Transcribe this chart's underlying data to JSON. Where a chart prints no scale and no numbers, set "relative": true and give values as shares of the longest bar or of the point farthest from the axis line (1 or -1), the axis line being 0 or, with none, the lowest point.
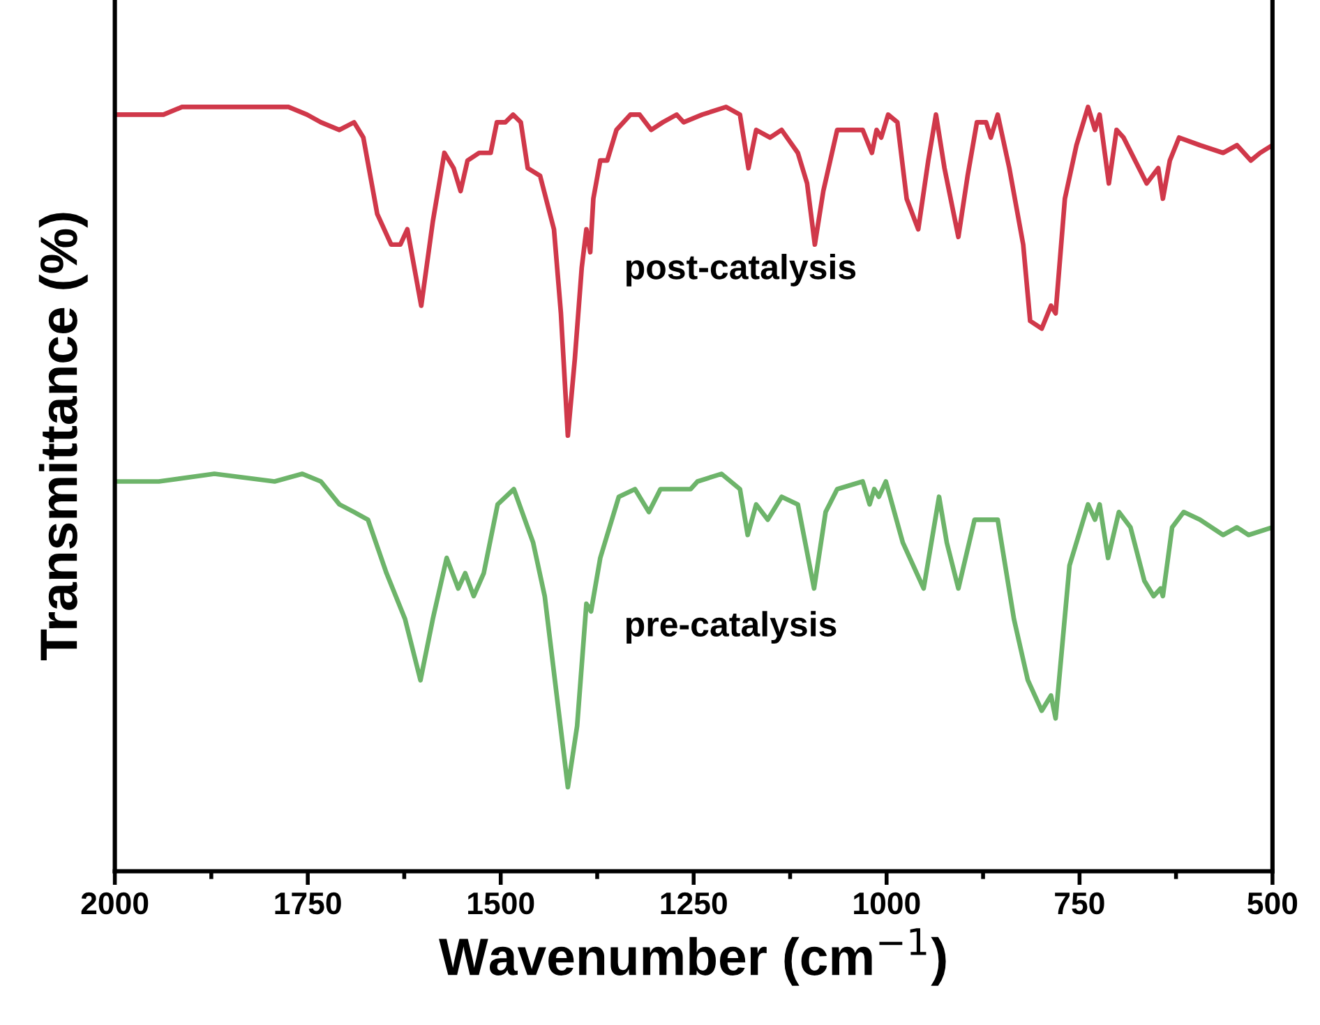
{
  "chart_data": {
    "type": "line",
    "relative": true,
    "xlabel": "Wavenumber (cm$^{−1}$)",
    "ylabel": "Transmittance (%)",
    "xlim": [
      2000,
      500
    ],
    "xticks": [
      2000,
      {
        "value": 1875,
        "label": null
      },
      1750,
      {
        "value": 1625,
        "label": null
      },
      1500,
      {
        "value": 1375,
        "label": null
      },
      1250,
      {
        "value": 1125,
        "label": null
      },
      1000,
      {
        "value": 875,
        "label": null
      },
      750,
      {
        "value": 625,
        "label": null
      },
      500
    ],
    "tick_labels": "x",
    "grid": false,
    "legend": false,
    "marker": "none",
    "line_style": "solid",
    "series": [
      {
        "name": "post-catalysis",
        "color": "#d0384a",
        "x": [
          2000,
          1937,
          1913,
          1871,
          1823,
          1775,
          1751,
          1733,
          1709,
          1690,
          1678,
          1660,
          1642,
          1630,
          1621,
          1603,
          1588,
          1573,
          1561,
          1552,
          1543,
          1528,
          1513,
          1505,
          1494,
          1484,
          1474,
          1465,
          1449,
          1431,
          1422,
          1413,
          1404,
          1395,
          1389,
          1384,
          1380,
          1371,
          1362,
          1350,
          1332,
          1320,
          1305,
          1290,
          1272,
          1263,
          1239,
          1208,
          1190,
          1179,
          1169,
          1151,
          1136,
          1115,
          1103,
          1093,
          1082,
          1064,
          1031,
          1019,
          1013,
          1007,
          998,
          986,
          974,
          959,
          946,
          936,
          925,
          907,
          895,
          883,
          871,
          865,
          856,
          841,
          823,
          814,
          799,
          787,
          781,
          769,
          754,
          739,
          730,
          724,
          712,
          702,
          693,
          678,
          663,
          648,
          642,
          633,
          621,
          594,
          564,
          546,
          528,
          516,
          500
        ],
        "values": [
          0.99,
          0.99,
          1.0,
          1.0,
          1.0,
          1.0,
          0.99,
          0.98,
          0.97,
          0.98,
          0.96,
          0.86,
          0.82,
          0.82,
          0.84,
          0.74,
          0.85,
          0.94,
          0.92,
          0.89,
          0.93,
          0.94,
          0.94,
          0.98,
          0.98,
          0.99,
          0.98,
          0.92,
          0.91,
          0.84,
          0.73,
          0.57,
          0.67,
          0.79,
          0.84,
          0.81,
          0.88,
          0.93,
          0.93,
          0.97,
          0.99,
          0.99,
          0.97,
          0.98,
          0.99,
          0.98,
          0.99,
          1.0,
          0.99,
          0.92,
          0.97,
          0.96,
          0.97,
          0.94,
          0.9,
          0.82,
          0.89,
          0.97,
          0.97,
          0.94,
          0.97,
          0.96,
          0.99,
          0.98,
          0.88,
          0.84,
          0.93,
          0.99,
          0.92,
          0.83,
          0.91,
          0.98,
          0.98,
          0.96,
          0.99,
          0.92,
          0.82,
          0.72,
          0.71,
          0.74,
          0.73,
          0.88,
          0.95,
          1.0,
          0.97,
          0.99,
          0.9,
          0.97,
          0.96,
          0.93,
          0.9,
          0.92,
          0.88,
          0.93,
          0.96,
          0.95,
          0.94,
          0.95,
          0.93,
          0.94,
          0.95
        ]
      },
      {
        "name": "pre-catalysis",
        "color": "#6db46a",
        "x": [
          2000,
          1943,
          1871,
          1793,
          1757,
          1733,
          1709,
          1690,
          1672,
          1648,
          1624,
          1604,
          1588,
          1570,
          1555,
          1546,
          1535,
          1522,
          1504,
          1483,
          1458,
          1443,
          1413,
          1401,
          1389,
          1383,
          1371,
          1347,
          1326,
          1308,
          1293,
          1275,
          1254,
          1245,
          1214,
          1190,
          1180,
          1169,
          1154,
          1136,
          1115,
          1094,
          1079,
          1064,
          1031,
          1022,
          1016,
          1010,
          1001,
          979,
          952,
          932,
          922,
          907,
          886,
          871,
          856,
          835,
          817,
          799,
          787,
          781,
          763,
          739,
          730,
          724,
          713,
          699,
          684,
          666,
          654,
          645,
          642,
          630,
          615,
          594,
          564,
          546,
          531,
          500
        ],
        "values": [
          0.51,
          0.51,
          0.52,
          0.51,
          0.52,
          0.51,
          0.48,
          0.47,
          0.46,
          0.39,
          0.33,
          0.25,
          0.33,
          0.41,
          0.37,
          0.39,
          0.36,
          0.39,
          0.48,
          0.5,
          0.43,
          0.36,
          0.11,
          0.19,
          0.35,
          0.34,
          0.41,
          0.49,
          0.5,
          0.47,
          0.5,
          0.5,
          0.5,
          0.51,
          0.52,
          0.5,
          0.44,
          0.48,
          0.46,
          0.49,
          0.48,
          0.37,
          0.47,
          0.5,
          0.51,
          0.48,
          0.5,
          0.49,
          0.51,
          0.43,
          0.37,
          0.49,
          0.43,
          0.37,
          0.46,
          0.46,
          0.46,
          0.33,
          0.25,
          0.21,
          0.23,
          0.2,
          0.4,
          0.48,
          0.46,
          0.48,
          0.41,
          0.47,
          0.45,
          0.38,
          0.36,
          0.37,
          0.36,
          0.45,
          0.47,
          0.46,
          0.44,
          0.45,
          0.44,
          0.45
        ]
      }
    ]
  }
}
